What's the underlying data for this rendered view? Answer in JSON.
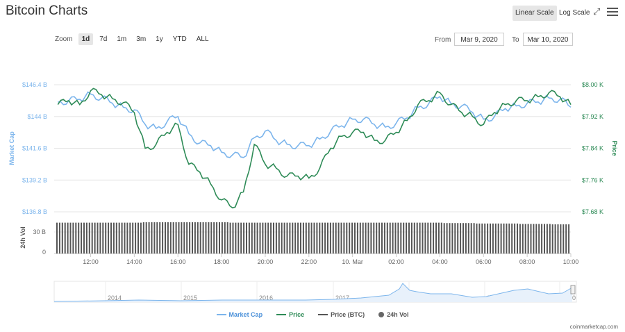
{
  "header": {
    "title": "Bitcoin Charts"
  },
  "scale": {
    "linear": "Linear Scale",
    "log": "Log Scale"
  },
  "zoom": {
    "label": "Zoom",
    "buttons": [
      "1d",
      "7d",
      "1m",
      "3m",
      "1y",
      "YTD",
      "ALL"
    ],
    "active": "1d"
  },
  "range": {
    "from_label": "From",
    "from_value": "Mar 9, 2020",
    "to_label": "To",
    "to_value": "Mar 10, 2020"
  },
  "legend": [
    {
      "label": "Market Cap",
      "color": "#7cb5ec",
      "kind": "line"
    },
    {
      "label": "Price",
      "color": "#2e8b57",
      "kind": "line"
    },
    {
      "label": "Price (BTC)",
      "color": "#555555",
      "kind": "line"
    },
    {
      "label": "24h Vol",
      "color": "#666666",
      "kind": "dot"
    }
  ],
  "credits": "coinmarketcap.com",
  "chart_data": {
    "type": "line",
    "title": "Bitcoin Charts",
    "x_ticks": [
      "12:00",
      "14:00",
      "16:00",
      "18:00",
      "20:00",
      "22:00",
      "10. Mar",
      "02:00",
      "04:00",
      "06:00",
      "08:00",
      "10:00"
    ],
    "left_axis": {
      "label": "Market Cap",
      "ticks": [
        "$146.4 B",
        "$144 B",
        "$141.6 B",
        "$139.2 B",
        "$136.8 B"
      ],
      "range": [
        136.8,
        146.4
      ],
      "unit": "B USD"
    },
    "right_axis": {
      "label": "Price",
      "ticks": [
        "$8.00 K",
        "$7.92 K",
        "$7.84 K",
        "$7.76 K",
        "$7.68 K"
      ],
      "range": [
        7.68,
        8.0
      ],
      "unit": "K USD"
    },
    "volume_axis": {
      "label": "24h Vol",
      "ticks": [
        "30 B",
        "0"
      ]
    },
    "navigator_ticks": [
      "2014",
      "2015",
      "2016",
      "2017",
      "2018",
      "2019",
      "2020"
    ],
    "grid": true,
    "legend_position": "bottom",
    "x_hours": [
      10.5,
      11,
      11.5,
      12,
      12.5,
      13,
      13.5,
      14,
      14.5,
      15,
      15.5,
      16,
      16.5,
      17,
      17.5,
      18,
      18.5,
      19,
      19.5,
      20,
      20.5,
      21,
      21.5,
      22,
      22.5,
      23,
      23.5,
      24,
      24.5,
      25,
      25.5,
      26,
      26.5,
      27,
      27.5,
      28,
      28.5,
      29,
      29.5,
      30,
      30.5,
      31,
      31.5,
      32,
      32.5,
      33,
      33.5,
      34
    ],
    "series": [
      {
        "name": "Market Cap",
        "axis": "left",
        "color": "#7cb5ec",
        "values": [
          145.1,
          145.2,
          145.3,
          145.7,
          145.4,
          145.0,
          144.7,
          144.5,
          143.4,
          143.1,
          143.6,
          144.0,
          142.7,
          142.0,
          141.8,
          141.3,
          141.1,
          140.9,
          142.4,
          142.9,
          142.2,
          141.9,
          141.8,
          141.8,
          142.3,
          142.9,
          143.3,
          143.8,
          143.8,
          143.4,
          143.2,
          143.5,
          143.9,
          144.7,
          145.0,
          145.5,
          145.0,
          144.8,
          144.3,
          143.8,
          144.0,
          144.6,
          144.8,
          145.0,
          145.1,
          145.4,
          145.3,
          144.7
        ]
      },
      {
        "name": "Price",
        "axis": "right",
        "color": "#2e8b57",
        "values": [
          7.95,
          7.96,
          7.95,
          7.985,
          7.975,
          7.965,
          7.955,
          7.93,
          7.84,
          7.85,
          7.88,
          7.9,
          7.8,
          7.78,
          7.75,
          7.71,
          7.69,
          7.73,
          7.85,
          7.8,
          7.79,
          7.77,
          7.77,
          7.765,
          7.79,
          7.84,
          7.87,
          7.88,
          7.88,
          7.86,
          7.86,
          7.88,
          7.91,
          7.95,
          7.96,
          7.98,
          7.95,
          7.93,
          7.92,
          7.9,
          7.93,
          7.95,
          7.96,
          7.96,
          7.97,
          7.98,
          7.97,
          7.95
        ]
      }
    ],
    "volume_values": [
      37,
      37,
      37,
      37,
      37,
      37,
      37,
      37,
      37.5,
      37.5,
      37.5,
      37.5,
      37.5,
      37.5,
      37.5,
      37.5,
      37,
      37,
      37,
      37,
      37,
      37,
      37,
      37,
      37,
      37,
      37,
      37,
      37,
      37,
      37,
      37,
      37,
      37,
      37,
      37,
      36.5,
      36.5,
      36.5,
      36,
      36,
      36,
      36,
      35.5,
      35.5,
      35.5,
      35,
      35
    ]
  }
}
